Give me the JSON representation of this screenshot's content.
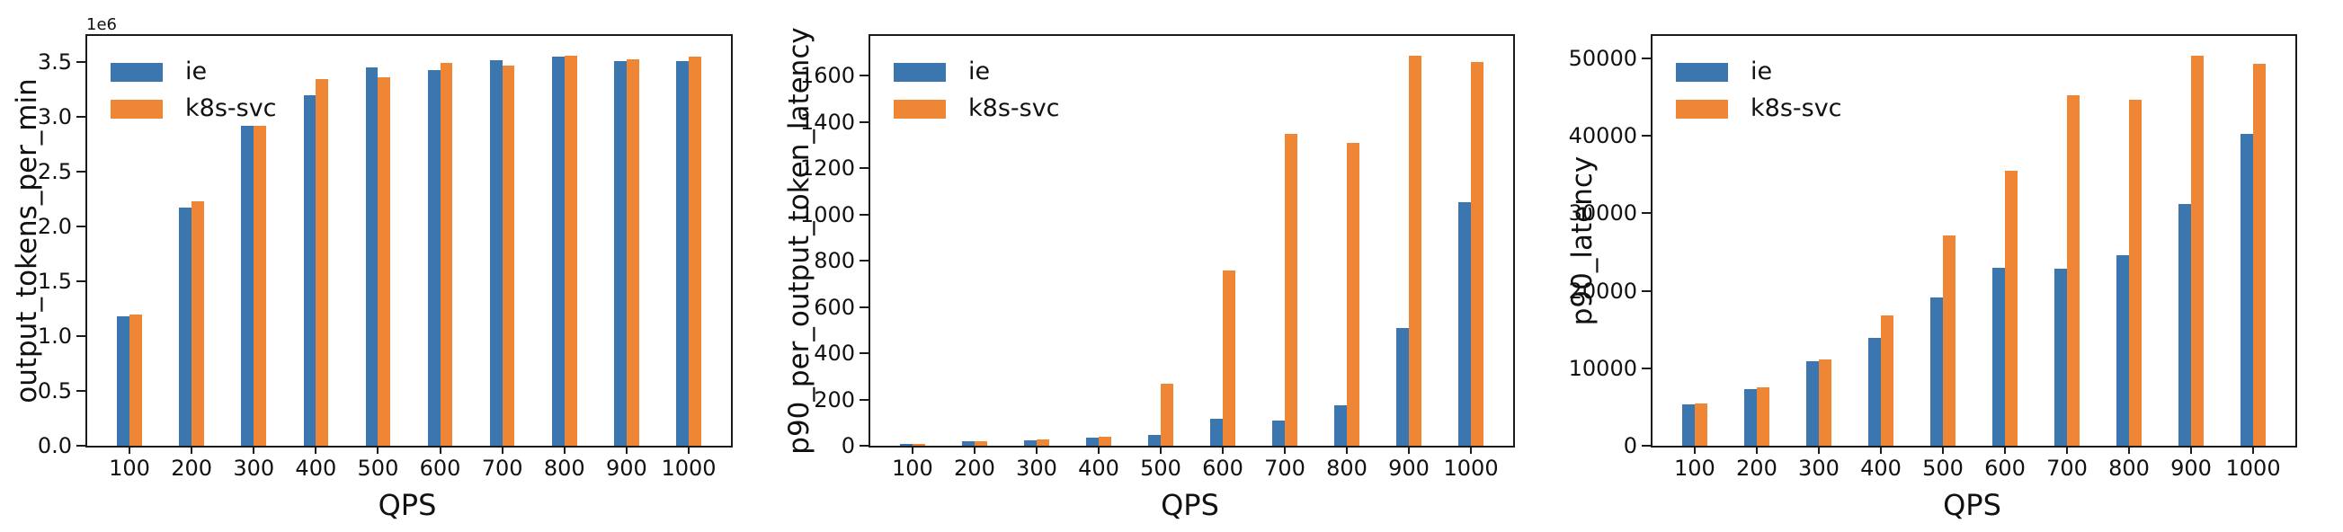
{
  "figure": {
    "background": "#ffffff",
    "text_color": "#111111",
    "spine_color": "#1b1b1b",
    "series_colors": {
      "ie": "#3b76af",
      "k8s_svc": "#ef8636"
    }
  },
  "chart_data": [
    {
      "type": "bar",
      "title": "",
      "ylabel": "output_tokens_per_min",
      "xlabel": "QPS",
      "offset_text": "1e6",
      "legend_position": "upper left",
      "grid": false,
      "categories": [
        "100",
        "200",
        "300",
        "400",
        "500",
        "600",
        "700",
        "800",
        "900",
        "1000"
      ],
      "series": [
        {
          "name": "ie",
          "color": "#3b76af",
          "values": [
            1180000,
            2170000,
            2920000,
            3200000,
            3450000,
            3430000,
            3520000,
            3550000,
            3510000,
            3510000
          ]
        },
        {
          "name": "k8s-svc",
          "color": "#ef8636",
          "values": [
            1200000,
            2230000,
            2920000,
            3350000,
            3360000,
            3490000,
            3470000,
            3560000,
            3530000,
            3550000
          ]
        }
      ],
      "ylim": [
        0,
        3740000
      ],
      "yticks": [
        0,
        500000,
        1000000,
        1500000,
        2000000,
        2500000,
        3000000,
        3500000
      ],
      "ytick_labels": [
        "0.0",
        "0.5",
        "1.0",
        "1.5",
        "2.0",
        "2.5",
        "3.0",
        "3.5"
      ]
    },
    {
      "type": "bar",
      "title": "",
      "ylabel": "p90_per_output_token_latency",
      "xlabel": "QPS",
      "offset_text": "",
      "legend_position": "upper left",
      "grid": false,
      "categories": [
        "100",
        "200",
        "300",
        "400",
        "500",
        "600",
        "700",
        "800",
        "900",
        "1000"
      ],
      "series": [
        {
          "name": "ie",
          "color": "#3b76af",
          "values": [
            9,
            18,
            25,
            35,
            48,
            116,
            107,
            175,
            510,
            1055
          ]
        },
        {
          "name": "k8s-svc",
          "color": "#ef8636",
          "values": [
            9,
            18,
            26,
            39,
            270,
            758,
            1350,
            1310,
            1688,
            1660
          ]
        }
      ],
      "ylim": [
        0,
        1773
      ],
      "yticks": [
        0,
        200,
        400,
        600,
        800,
        1000,
        1200,
        1400,
        1600
      ],
      "ytick_labels": [
        "0",
        "200",
        "400",
        "600",
        "800",
        "1000",
        "1200",
        "1400",
        "1600"
      ]
    },
    {
      "type": "bar",
      "title": "",
      "ylabel": "p90_latency",
      "xlabel": "QPS",
      "offset_text": "",
      "legend_position": "upper left",
      "grid": false,
      "categories": [
        "100",
        "200",
        "300",
        "400",
        "500",
        "600",
        "700",
        "800",
        "900",
        "1000"
      ],
      "series": [
        {
          "name": "ie",
          "color": "#3b76af",
          "values": [
            5300,
            7300,
            10900,
            13900,
            19200,
            23000,
            22800,
            24600,
            31200,
            40200
          ]
        },
        {
          "name": "k8s-svc",
          "color": "#ef8636",
          "values": [
            5500,
            7500,
            11100,
            16800,
            27200,
            35500,
            45200,
            44700,
            50400,
            49300
          ]
        }
      ],
      "ylim": [
        0,
        52900
      ],
      "yticks": [
        0,
        10000,
        20000,
        30000,
        40000,
        50000
      ],
      "ytick_labels": [
        "0",
        "10000",
        "20000",
        "30000",
        "40000",
        "50000"
      ]
    }
  ]
}
